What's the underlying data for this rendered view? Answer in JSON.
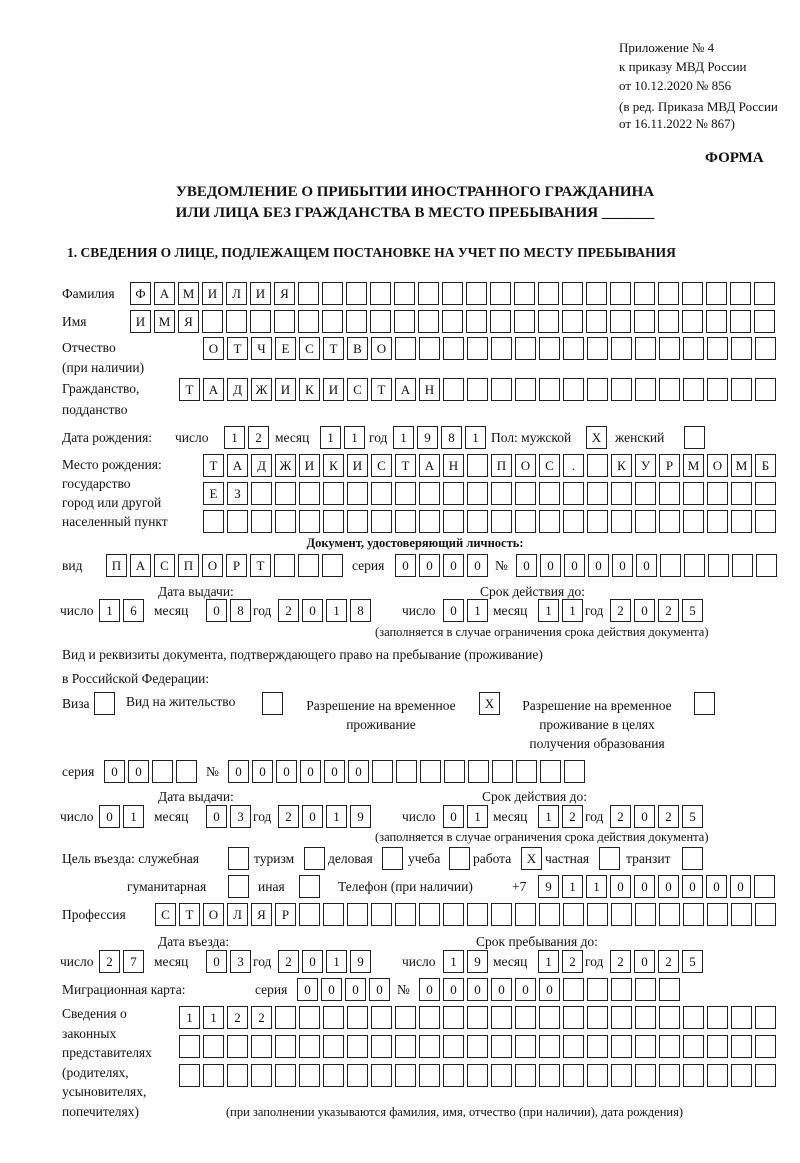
{
  "header": {
    "line1": "Приложение № 4",
    "line2": "к приказу МВД России",
    "line3": "от 10.12.2020 № 856",
    "line4": "(в ред. Приказа МВД России",
    "line5": "от 16.11.2022 № 867)",
    "forma": "ФОРМА"
  },
  "title": {
    "line1": "УВЕДОМЛЕНИЕ О ПРИБЫТИИ ИНОСТРАННОГО ГРАЖДАНИНА",
    "line2": "ИЛИ ЛИЦА БЕЗ ГРАЖДАНСТВА В МЕСТО ПРЕБЫВАНИЯ _______"
  },
  "section1": "1. СВЕДЕНИЯ О ЛИЦЕ, ПОДЛЕЖАЩЕМ ПОСТАНОВКЕ НА УЧЕТ ПО МЕСТУ ПРЕБЫВАНИЯ",
  "labels": {
    "surname": "Фамилия",
    "name": "Имя",
    "patronymic1": "Отчество",
    "patronymic2": "(при наличии)",
    "citizenship1": "Гражданство,",
    "citizenship2": "подданство",
    "birth_date": "Дата рождения:",
    "day": "число",
    "month": "месяц",
    "year": "год",
    "sex": "Пол: мужской",
    "female": "женский",
    "birthplace1": "Место рождения:",
    "birthplace2": "государство",
    "birthplace3": "город или другой",
    "birthplace4": "населенный пункт",
    "id_doc": "Документ, удостоверяющий личность:",
    "kind": "вид",
    "series": "серия",
    "number": "№",
    "issue_date": "Дата выдачи:",
    "valid_until": "Срок действия до:",
    "valid_note": "(заполняется в случае ограничения срока действия документа)",
    "right_doc1": "Вид и реквизиты документа, подтверждающего право на пребывание (проживание)",
    "right_doc2": "в Российской Федерации:",
    "visa": "Виза",
    "residence": "Вид на жительство",
    "trp1": "Разрешение на временное",
    "trp2": "проживание",
    "trp_edu1": "Разрешение на временное",
    "trp_edu2": "проживание в целях",
    "trp_edu3": "получения образования",
    "purpose": "Цель въезда: служебная",
    "tourism": "туризм",
    "business": "деловая",
    "study": "учеба",
    "work": "работа",
    "private": "частная",
    "transit": "транзит",
    "humanitarian": "гуманитарная",
    "other": "иная",
    "phone": "Телефон (при наличии)",
    "phone_prefix": "+7",
    "profession": "Профессия",
    "entry_date": "Дата въезда:",
    "stay_until": "Срок пребывания до:",
    "migration_card": "Миграционная карта:",
    "reps1": "Сведения о",
    "reps2": "законных",
    "reps3": "представителях",
    "reps4": "(родителях,",
    "reps5": "усыновителях,",
    "reps6": "попечителях)",
    "reps_note": "(при заполнении указываются фамилия, имя, отчество (при наличии), дата рождения)"
  },
  "fields": {
    "surname": "ФАМИЛИЯ",
    "name": "ИМЯ",
    "patronymic": "ОТЧЕСТВО",
    "citizenship": "ТАДЖИКИСТАН",
    "birth_day": "12",
    "birth_month": "11",
    "birth_year": "1981",
    "sex_male": "X",
    "sex_female": "",
    "birthplace_1": "ТАДЖИКИСТАН ПОС. КУРМОМБ",
    "birthplace_2": "ЕЗ",
    "birthplace_3": "",
    "id_kind": "ПАСПОРТ",
    "id_series": "0000",
    "id_number": "000000",
    "id_issue_day": "16",
    "id_issue_month": "08",
    "id_issue_year": "2018",
    "id_valid_day": "01",
    "id_valid_month": "11",
    "id_valid_year": "2025",
    "visa": "",
    "residence": "",
    "trp": "X",
    "trp_edu": "",
    "rd_series": "00",
    "rd_number": "000000",
    "rd_issue_day": "01",
    "rd_issue_month": "03",
    "rd_issue_year": "2019",
    "rd_valid_day": "01",
    "rd_valid_month": "12",
    "rd_valid_year": "2025",
    "p_official": "",
    "p_tourism": "",
    "p_business": "",
    "p_study": "",
    "p_work": "X",
    "p_private": "",
    "p_transit": "",
    "p_humanitarian": "",
    "p_other": "",
    "phone": "911000000",
    "profession": "СТОЛЯР",
    "entry_day": "27",
    "entry_month": "03",
    "entry_year": "2019",
    "stay_day": "19",
    "stay_month": "12",
    "stay_year": "2025",
    "mc_series": "0000",
    "mc_number": "000000",
    "reps_1": "1122",
    "reps_2": "",
    "reps_3": ""
  }
}
